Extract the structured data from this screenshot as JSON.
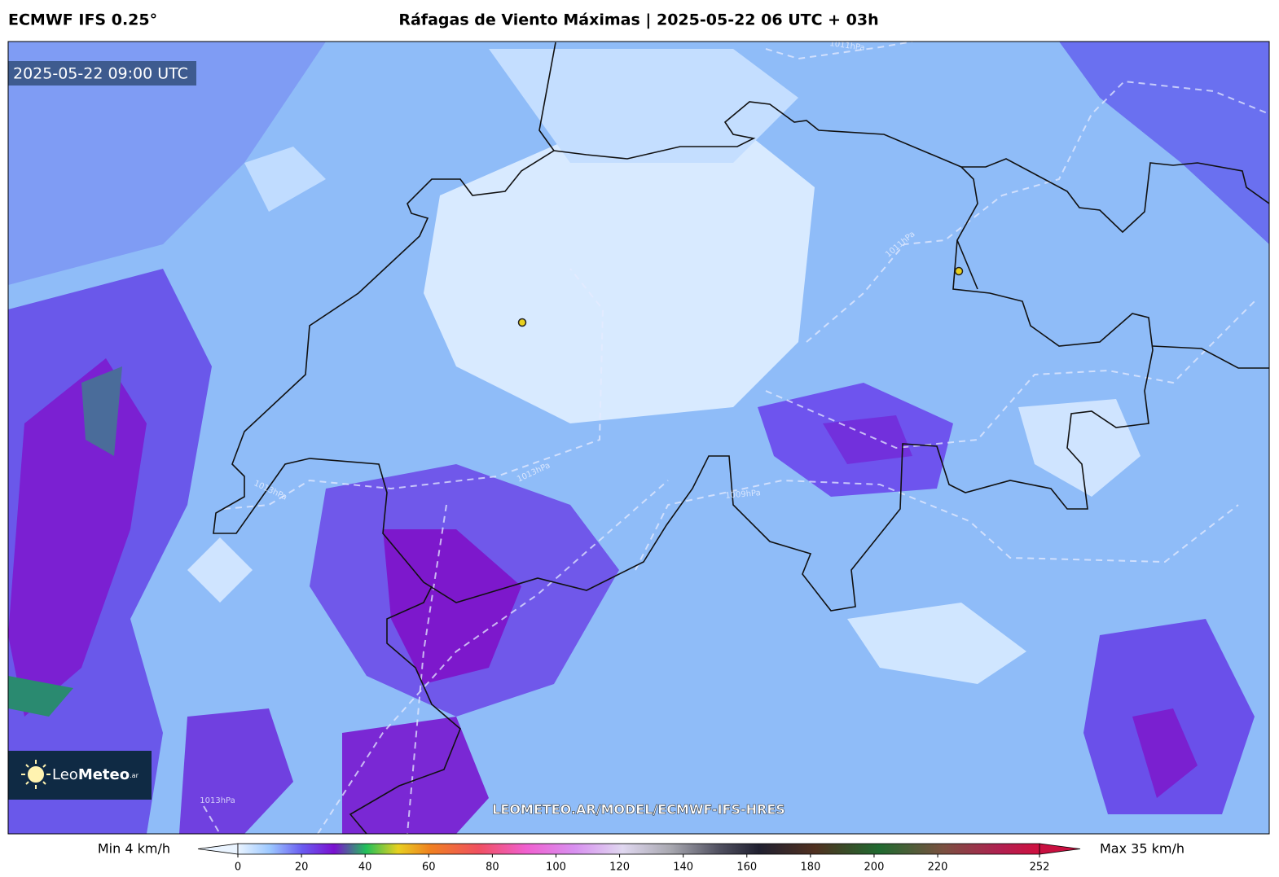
{
  "header": {
    "model": "ECMWF IFS 0.25°",
    "title": "Ráfagas de Viento Máximas | 2025-05-22 06 UTC + 03h"
  },
  "map": {
    "valid_time": "2025-05-22 09:00 UTC",
    "watermark": "LEOMETEO.AR/MODEL/ECMWF-IFS-HRES",
    "logo": {
      "brand": "Leo",
      "brand_bold": "Meteo",
      "suffix": ".ar"
    },
    "isobar_labels": [
      "1011hPa",
      "1011hPa",
      "1013hPa",
      "1013hPa",
      "1009hPa",
      "1013hPa"
    ]
  },
  "colorbar": {
    "min_label": "Min 4 km/h",
    "max_label": "Max 35 km/h",
    "range": [
      0,
      252
    ],
    "ticks": [
      0,
      20,
      40,
      60,
      80,
      100,
      120,
      140,
      160,
      180,
      200,
      220,
      252
    ]
  }
}
